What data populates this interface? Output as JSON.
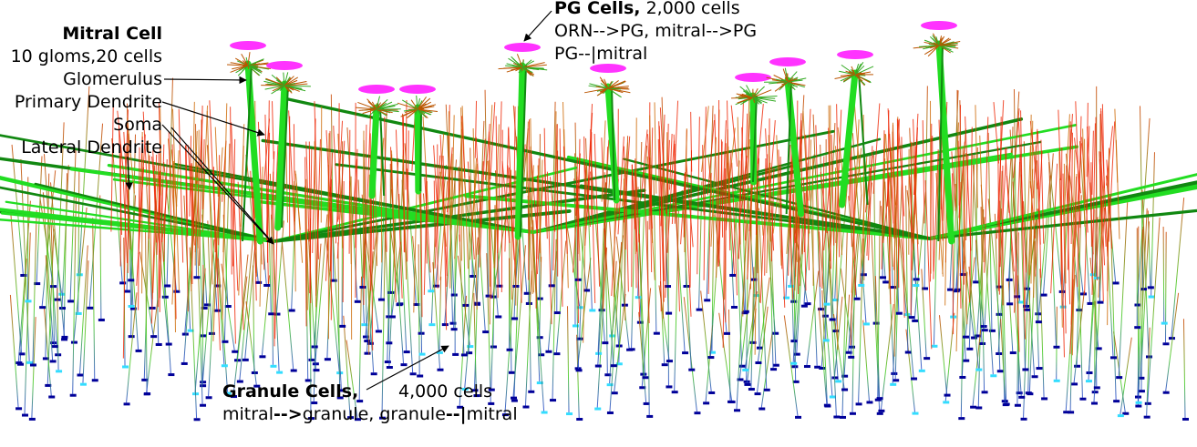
{
  "mitral": {
    "title": "Mitral Cell",
    "count": "10 gloms,20 cells",
    "glomerulus": "Glomerulus",
    "primary_dendrite": "Primary Dendrite",
    "soma": "Soma",
    "lateral_dendrite": "Lateral Dendrite"
  },
  "pg": {
    "title": "PG Cells,",
    "count": " 2,000 cells",
    "line2": "ORN-->PG, mitral-->PG",
    "line3": "PG--|mitral"
  },
  "granule": {
    "title": "Granule Cells,",
    "count": "4,000 cells",
    "line2_a": "mitral",
    "line2_b": "-->",
    "line2_c": "granule, granule",
    "line2_d": "--|",
    "line2_e": "mitral"
  },
  "colors": {
    "glomerulus_tuft": "#ff33ff",
    "mitral_dendrite": "#22dd22",
    "mitral_dendrite_dark": "#118811",
    "pg_dendrite": "#ee2200",
    "granule_dendrite": "#44cc22",
    "granule_soma": "#000099",
    "granule_soma_light": "#33ddff"
  }
}
